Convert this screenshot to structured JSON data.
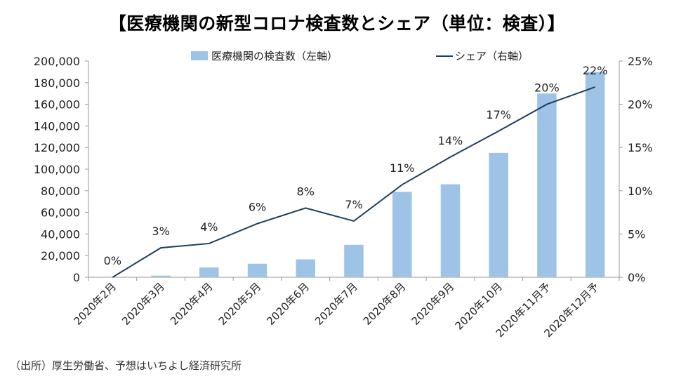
{
  "title": "【医療機関の新型コロナ検査数とシェア（単位：検査）】",
  "source": "（出所）厚生労働省、予想はいちよし経済研究所",
  "colors": {
    "bar": "#9DC3E6",
    "line": "#1F3E60",
    "axis": "#999999",
    "text": "#222222"
  },
  "chart_data": {
    "type": "bar",
    "categories": [
      "2020年2月",
      "2020年3月",
      "2020年4月",
      "2020年5月",
      "2020年6月",
      "2020年7月",
      "2020年8月",
      "2020年9月",
      "2020年10月",
      "2020年11月予",
      "2020年12月予"
    ],
    "series": [
      {
        "name": "医療機関の検査数（左軸）",
        "type": "bar",
        "axis": "left",
        "values": [
          0,
          1500,
          9000,
          12500,
          16500,
          30000,
          79000,
          86000,
          115000,
          170000,
          190000
        ]
      },
      {
        "name": "シェア（右軸）",
        "type": "line",
        "axis": "right",
        "values": [
          0,
          3.4,
          3.9,
          6.2,
          8.0,
          6.5,
          10.7,
          13.9,
          16.9,
          20.0,
          22.0
        ],
        "labels": [
          "0%",
          "3%",
          "4%",
          "6%",
          "8%",
          "7%",
          "11%",
          "14%",
          "17%",
          "20%",
          "22%"
        ]
      }
    ],
    "y_left": {
      "min": 0,
      "max": 200000,
      "step": 20000,
      "ticks": [
        "0",
        "20,000",
        "40,000",
        "60,000",
        "80,000",
        "100,000",
        "120,000",
        "140,000",
        "160,000",
        "180,000",
        "200,000"
      ]
    },
    "y_right": {
      "min": 0,
      "max": 25,
      "step": 5,
      "ticks": [
        "0%",
        "5%",
        "10%",
        "15%",
        "20%",
        "25%"
      ]
    },
    "legend": [
      {
        "name": "医療機関の検査数（左軸）",
        "kind": "bar"
      },
      {
        "name": "シェア（右軸）",
        "kind": "line"
      }
    ],
    "legend_position": "top",
    "grid": false,
    "xlabel": "",
    "ylabel": "",
    "y2label": ""
  }
}
